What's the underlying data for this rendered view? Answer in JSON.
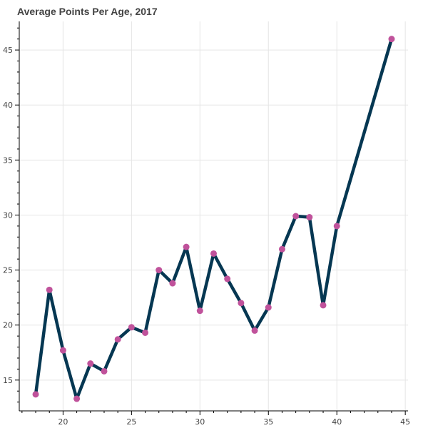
{
  "chart_data": {
    "type": "line",
    "title": "Average Points Per Age, 2017",
    "xlabel": "",
    "ylabel": "",
    "xlim": [
      16.8,
      45.2
    ],
    "ylim": [
      12.2,
      47.6
    ],
    "x_ticks": [
      20,
      25,
      30,
      35,
      40,
      45
    ],
    "y_ticks": [
      15,
      20,
      25,
      30,
      35,
      40,
      45
    ],
    "grid": true,
    "line_color": "#053752",
    "marker_color": "#c0529b",
    "series": [
      {
        "x": [
          18,
          19,
          20,
          21,
          22,
          23,
          24,
          25,
          26,
          27,
          28,
          29,
          30,
          31,
          32,
          33,
          34,
          35,
          36,
          37,
          38,
          39,
          40,
          44
        ],
        "y": [
          13.7,
          23.2,
          17.7,
          13.3,
          16.5,
          15.8,
          18.7,
          19.8,
          19.3,
          25.0,
          23.8,
          27.1,
          21.3,
          26.5,
          24.2,
          22.0,
          19.5,
          21.6,
          26.9,
          29.9,
          29.8,
          21.8,
          29.0,
          46.0
        ]
      }
    ]
  }
}
